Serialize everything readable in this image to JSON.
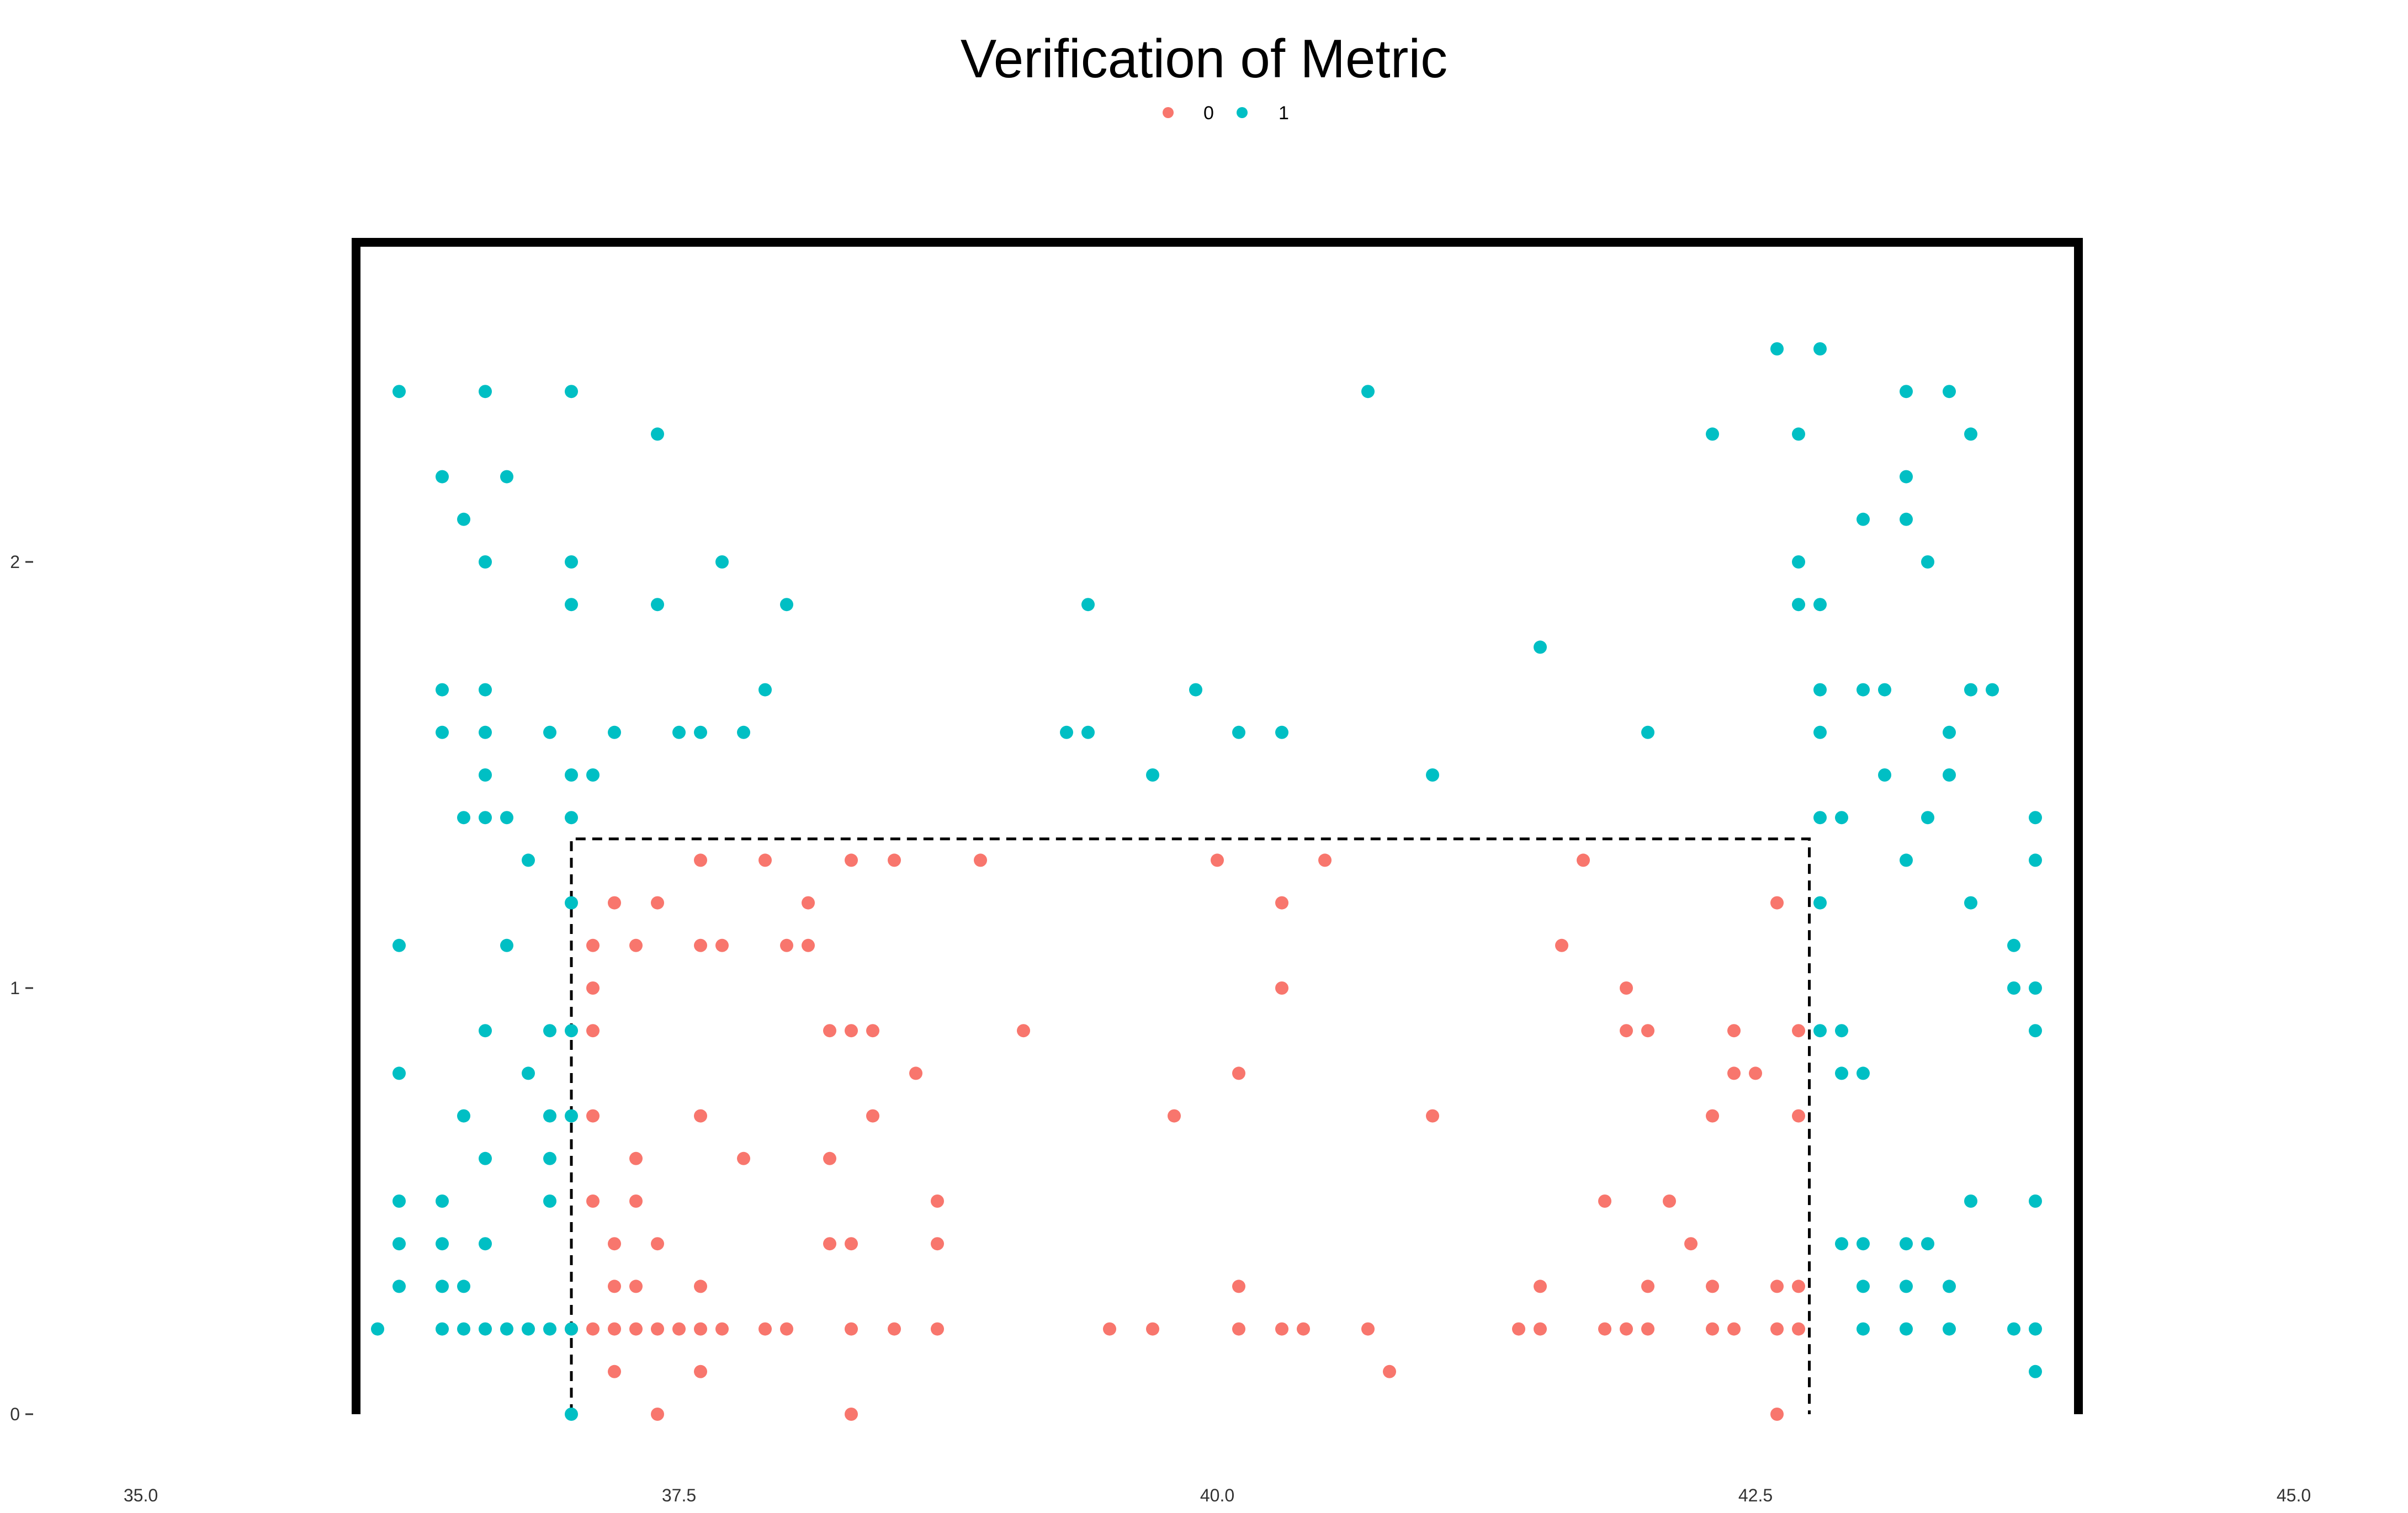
{
  "chart_data": {
    "type": "scatter",
    "title": "Verification of Metric",
    "xlabel": "",
    "ylabel": "",
    "xlim": [
      35.0,
      45.0
    ],
    "ylim": [
      0,
      2.75
    ],
    "x_ticks": [
      35.0,
      37.5,
      40.0,
      42.5,
      45.0
    ],
    "x_tick_labels": [
      "35.0",
      "37.5",
      "40.0",
      "42.5",
      "45.0"
    ],
    "y_ticks": [
      0,
      1,
      2
    ],
    "y_tick_labels": [
      "0",
      "1",
      "2"
    ],
    "grid": false,
    "legend": {
      "position": "top-center",
      "entries": [
        "0",
        "1"
      ]
    },
    "colors": {
      "0": "#F8766D",
      "1": "#00BFC4"
    },
    "annotations": {
      "outer_box": {
        "x": [
          36.0,
          44.0
        ],
        "y_top": 2.75,
        "open_bottom": true
      },
      "inner_dashed_box": {
        "x": [
          37.0,
          42.75
        ],
        "y_top": 1.35,
        "open_bottom": true
      }
    },
    "series": [
      {
        "name": "0",
        "points": [
          [
            37.0,
            0.2
          ],
          [
            37.1,
            0.2
          ],
          [
            37.2,
            0.2
          ],
          [
            37.3,
            0.2
          ],
          [
            37.4,
            0.2
          ],
          [
            37.5,
            0.2
          ],
          [
            37.6,
            0.2
          ],
          [
            37.7,
            0.2
          ],
          [
            37.9,
            0.2
          ],
          [
            38.0,
            0.2
          ],
          [
            38.3,
            0.2
          ],
          [
            38.5,
            0.2
          ],
          [
            38.7,
            0.2
          ],
          [
            37.2,
            0.1
          ],
          [
            37.6,
            0.1
          ],
          [
            37.4,
            0.0
          ],
          [
            38.3,
            0.0
          ],
          [
            37.2,
            0.3
          ],
          [
            37.3,
            0.3
          ],
          [
            37.6,
            0.3
          ],
          [
            37.2,
            0.4
          ],
          [
            37.4,
            0.4
          ],
          [
            38.2,
            0.4
          ],
          [
            38.3,
            0.4
          ],
          [
            38.7,
            0.4
          ],
          [
            37.1,
            0.5
          ],
          [
            37.3,
            0.5
          ],
          [
            38.7,
            0.5
          ],
          [
            37.3,
            0.6
          ],
          [
            37.8,
            0.6
          ],
          [
            38.2,
            0.6
          ],
          [
            37.1,
            0.7
          ],
          [
            37.6,
            0.7
          ],
          [
            38.4,
            0.7
          ],
          [
            38.6,
            0.8
          ],
          [
            37.1,
            0.9
          ],
          [
            38.2,
            0.9
          ],
          [
            38.3,
            0.9
          ],
          [
            38.4,
            0.9
          ],
          [
            39.1,
            0.9
          ],
          [
            37.1,
            1.0
          ],
          [
            37.1,
            1.1
          ],
          [
            37.3,
            1.1
          ],
          [
            37.6,
            1.1
          ],
          [
            37.7,
            1.1
          ],
          [
            38.0,
            1.1
          ],
          [
            38.1,
            1.1
          ],
          [
            37.2,
            1.2
          ],
          [
            37.4,
            1.2
          ],
          [
            38.1,
            1.2
          ],
          [
            37.6,
            1.3
          ],
          [
            37.9,
            1.3
          ],
          [
            38.3,
            1.3
          ],
          [
            38.5,
            1.3
          ],
          [
            38.9,
            1.3
          ],
          [
            39.5,
            0.2
          ],
          [
            39.7,
            0.2
          ],
          [
            40.1,
            0.2
          ],
          [
            40.3,
            0.2
          ],
          [
            40.4,
            0.2
          ],
          [
            40.7,
            0.2
          ],
          [
            40.8,
            0.1
          ],
          [
            40.1,
            0.3
          ],
          [
            39.8,
            0.7
          ],
          [
            40.1,
            0.8
          ],
          [
            40.3,
            1.0
          ],
          [
            40.3,
            1.2
          ],
          [
            40.0,
            1.3
          ],
          [
            40.5,
            1.3
          ],
          [
            41.0,
            0.7
          ],
          [
            41.4,
            0.2
          ],
          [
            41.5,
            0.2
          ],
          [
            41.5,
            0.3
          ],
          [
            41.6,
            1.1
          ],
          [
            41.7,
            1.3
          ],
          [
            41.8,
            0.2
          ],
          [
            41.9,
            0.2
          ],
          [
            42.0,
            0.2
          ],
          [
            42.3,
            0.2
          ],
          [
            42.4,
            0.2
          ],
          [
            42.6,
            0.2
          ],
          [
            42.7,
            0.2
          ],
          [
            42.0,
            0.3
          ],
          [
            42.3,
            0.3
          ],
          [
            42.6,
            0.3
          ],
          [
            42.7,
            0.3
          ],
          [
            42.6,
            0.0
          ],
          [
            42.2,
            0.4
          ],
          [
            41.8,
            0.5
          ],
          [
            42.1,
            0.5
          ],
          [
            42.3,
            0.7
          ],
          [
            42.7,
            0.7
          ],
          [
            42.4,
            0.8
          ],
          [
            42.5,
            0.8
          ],
          [
            41.9,
            0.9
          ],
          [
            42.0,
            0.9
          ],
          [
            42.4,
            0.9
          ],
          [
            42.7,
            0.9
          ],
          [
            41.9,
            1.0
          ],
          [
            42.6,
            1.2
          ]
        ]
      },
      {
        "name": "1",
        "points": [
          [
            36.1,
            0.2
          ],
          [
            36.4,
            0.2
          ],
          [
            36.5,
            0.2
          ],
          [
            36.6,
            0.2
          ],
          [
            36.7,
            0.2
          ],
          [
            36.8,
            0.2
          ],
          [
            36.9,
            0.2
          ],
          [
            37.0,
            0.2
          ],
          [
            36.2,
            0.3
          ],
          [
            36.4,
            0.3
          ],
          [
            36.5,
            0.3
          ],
          [
            36.2,
            0.4
          ],
          [
            36.4,
            0.4
          ],
          [
            36.6,
            0.4
          ],
          [
            36.2,
            0.5
          ],
          [
            36.4,
            0.5
          ],
          [
            36.9,
            0.5
          ],
          [
            36.6,
            0.6
          ],
          [
            36.9,
            0.6
          ],
          [
            36.5,
            0.7
          ],
          [
            36.9,
            0.7
          ],
          [
            37.0,
            0.7
          ],
          [
            36.2,
            0.8
          ],
          [
            36.8,
            0.8
          ],
          [
            36.6,
            0.9
          ],
          [
            36.9,
            0.9
          ],
          [
            37.0,
            0.9
          ],
          [
            36.2,
            1.1
          ],
          [
            36.7,
            1.1
          ],
          [
            37.0,
            1.2
          ],
          [
            36.8,
            1.3
          ],
          [
            36.5,
            1.4
          ],
          [
            36.6,
            1.4
          ],
          [
            36.7,
            1.4
          ],
          [
            37.0,
            1.4
          ],
          [
            36.6,
            1.5
          ],
          [
            37.0,
            1.5
          ],
          [
            37.1,
            1.5
          ],
          [
            36.4,
            1.6
          ],
          [
            36.6,
            1.6
          ],
          [
            36.9,
            1.6
          ],
          [
            37.2,
            1.6
          ],
          [
            37.5,
            1.6
          ],
          [
            37.6,
            1.6
          ],
          [
            37.8,
            1.6
          ],
          [
            36.4,
            1.7
          ],
          [
            36.6,
            1.7
          ],
          [
            37.9,
            1.7
          ],
          [
            37.0,
            1.9
          ],
          [
            37.4,
            1.9
          ],
          [
            38.0,
            1.9
          ],
          [
            36.6,
            2.0
          ],
          [
            37.0,
            2.0
          ],
          [
            37.7,
            2.0
          ],
          [
            36.5,
            2.1
          ],
          [
            36.4,
            2.2
          ],
          [
            36.7,
            2.2
          ],
          [
            37.4,
            2.3
          ],
          [
            36.2,
            2.4
          ],
          [
            36.6,
            2.4
          ],
          [
            37.0,
            2.4
          ],
          [
            37.0,
            0.0
          ],
          [
            39.3,
            1.6
          ],
          [
            39.4,
            1.6
          ],
          [
            39.4,
            1.9
          ],
          [
            39.7,
            1.5
          ],
          [
            39.9,
            1.7
          ],
          [
            40.1,
            1.6
          ],
          [
            40.3,
            1.6
          ],
          [
            40.7,
            2.4
          ],
          [
            41.0,
            1.5
          ],
          [
            41.5,
            1.8
          ],
          [
            42.0,
            1.6
          ],
          [
            42.3,
            2.3
          ],
          [
            42.6,
            2.5
          ],
          [
            42.8,
            2.5
          ],
          [
            42.7,
            2.3
          ],
          [
            43.2,
            2.4
          ],
          [
            43.4,
            2.4
          ],
          [
            43.5,
            2.3
          ],
          [
            43.2,
            2.2
          ],
          [
            43.0,
            2.1
          ],
          [
            43.2,
            2.1
          ],
          [
            42.7,
            2.0
          ],
          [
            43.3,
            2.0
          ],
          [
            42.7,
            1.9
          ],
          [
            42.8,
            1.9
          ],
          [
            42.8,
            1.7
          ],
          [
            43.0,
            1.7
          ],
          [
            43.1,
            1.7
          ],
          [
            43.5,
            1.7
          ],
          [
            43.6,
            1.7
          ],
          [
            42.8,
            1.6
          ],
          [
            43.4,
            1.6
          ],
          [
            43.1,
            1.5
          ],
          [
            43.4,
            1.5
          ],
          [
            42.8,
            1.4
          ],
          [
            42.9,
            1.4
          ],
          [
            43.3,
            1.4
          ],
          [
            43.8,
            1.4
          ],
          [
            43.2,
            1.3
          ],
          [
            43.8,
            1.3
          ],
          [
            42.8,
            1.2
          ],
          [
            43.5,
            1.2
          ],
          [
            43.7,
            1.1
          ],
          [
            43.7,
            1.0
          ],
          [
            43.8,
            1.0
          ],
          [
            42.8,
            0.9
          ],
          [
            42.9,
            0.9
          ],
          [
            43.8,
            0.9
          ],
          [
            42.9,
            0.8
          ],
          [
            43.0,
            0.8
          ],
          [
            43.5,
            0.5
          ],
          [
            43.8,
            0.5
          ],
          [
            42.9,
            0.4
          ],
          [
            43.0,
            0.4
          ],
          [
            43.2,
            0.4
          ],
          [
            43.3,
            0.4
          ],
          [
            43.0,
            0.3
          ],
          [
            43.2,
            0.3
          ],
          [
            43.4,
            0.3
          ],
          [
            43.0,
            0.2
          ],
          [
            43.2,
            0.2
          ],
          [
            43.4,
            0.2
          ],
          [
            43.7,
            0.2
          ],
          [
            43.8,
            0.2
          ],
          [
            43.8,
            0.1
          ]
        ]
      }
    ]
  }
}
